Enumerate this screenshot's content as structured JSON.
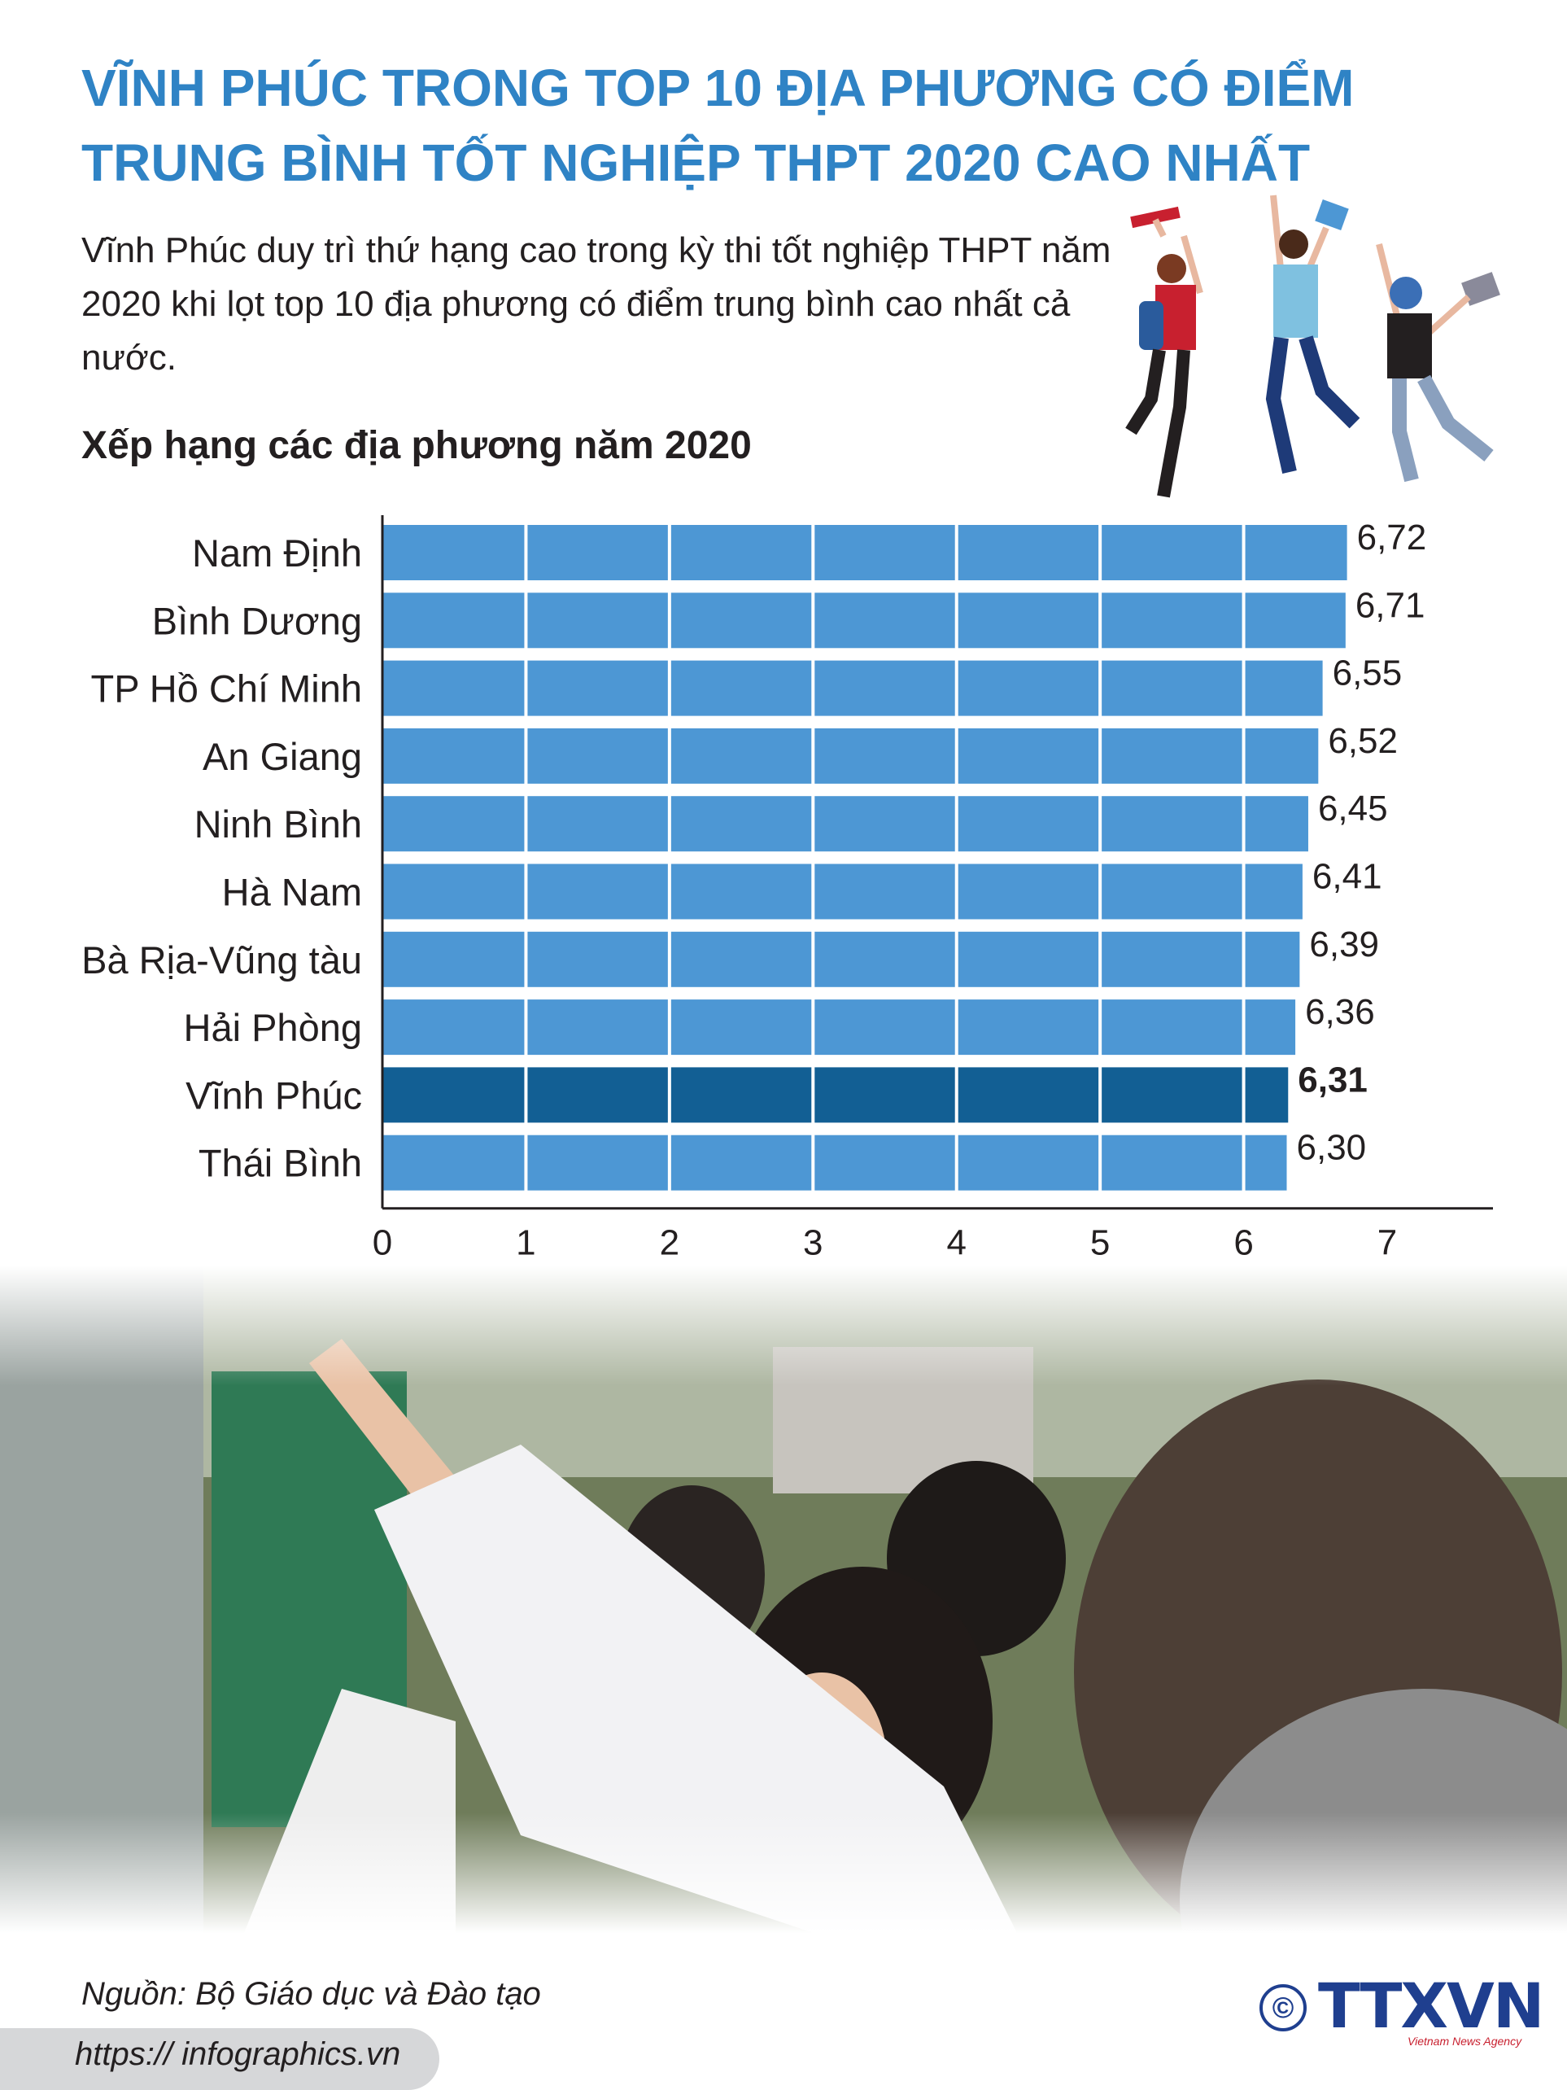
{
  "header": {
    "title_line1": "VĨNH PHÚC TRONG TOP 10 ĐỊA PHƯƠNG CÓ ĐIỂM",
    "title_line2": "TRUNG BÌNH TỐT NGHIỆP THPT 2020 CAO NHẤT",
    "lead": "Vĩnh Phúc duy trì thứ hạng cao trong kỳ thi tốt nghiệp THPT năm 2020 khi lọt top 10 địa phương có điểm trung bình cao nhất cả nước."
  },
  "chart_data": {
    "type": "bar",
    "orientation": "horizontal",
    "title": "Xếp hạng các địa phương năm 2020",
    "categories": [
      "Nam Định",
      "Bình Dương",
      "TP Hồ Chí Minh",
      "An Giang",
      "Ninh Bình",
      "Hà Nam",
      "Bà Rịa-Vũng tàu",
      "Hải Phòng",
      "Vĩnh Phúc",
      "Thái Bình"
    ],
    "values": [
      6.72,
      6.71,
      6.55,
      6.52,
      6.45,
      6.41,
      6.39,
      6.36,
      6.31,
      6.3
    ],
    "value_labels": [
      "6,72",
      "6,71",
      "6,55",
      "6,52",
      "6,45",
      "6,41",
      "6,39",
      "6,36",
      "6,31",
      "6,30"
    ],
    "highlight_index": 8,
    "xlim": [
      0,
      7
    ],
    "xticks": [
      "0",
      "1",
      "2",
      "3",
      "4",
      "5",
      "6",
      "7"
    ],
    "grid": true,
    "colors": {
      "bar": "#4d97d4",
      "highlight": "#125f94",
      "axis": "#231f20"
    }
  },
  "footer": {
    "source": "Nguồn: Bộ Giáo dục và Đào tạo",
    "url": "https:// infographics.vn",
    "copyright_symbol": "©",
    "logo": "TTXVN",
    "logo_sub": "Vietnam News Agency"
  }
}
